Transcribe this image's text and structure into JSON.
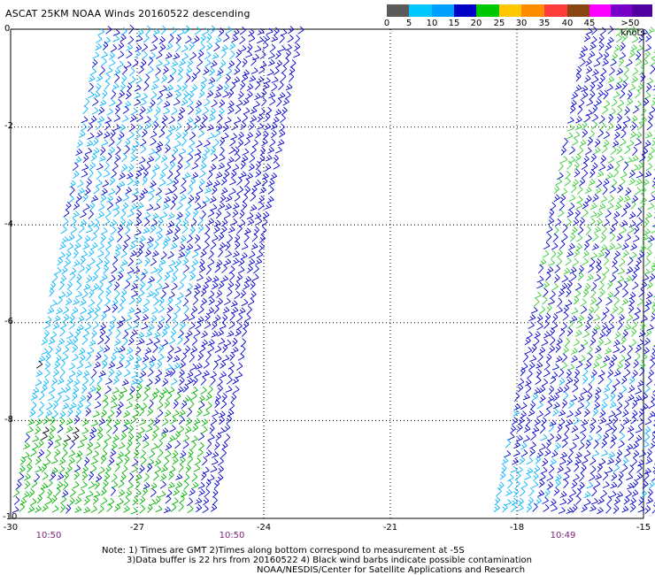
{
  "title": "ASCAT 25KM NOAA Winds 20160522 descending",
  "legend": {
    "labels": [
      "0",
      "5",
      "10",
      "15",
      "20",
      "25",
      "30",
      "35",
      "40",
      "45",
      ">50 knots"
    ],
    "colors": [
      "#5a5a5a",
      "#00c8ff",
      "#00a0ff",
      "#0000c8",
      "#00c800",
      "#ffc800",
      "#ff8c00",
      "#ff3c3c",
      "#8b4513",
      "#ff00ff",
      "#7800c8",
      "#5000a0"
    ]
  },
  "y_axis_labels": [
    "0",
    "-2",
    "-4",
    "-6",
    "-8",
    "-10"
  ],
  "x_axis_labels": [
    "-30",
    "-27",
    "-24",
    "-21",
    "-18",
    "-15"
  ],
  "pass_times": [
    "10:50",
    "10:50",
    "10:49"
  ],
  "notes": {
    "line1": "Note: 1) Times are GMT 2)Times along bottom correspond to measurement at -5S",
    "line2": "3)Data buffer is 22 hrs from 20160522 4) Black wind barbs indicate possible contamination",
    "line3": "NOAA/NESDIS/Center for Satellite Applications and Research"
  },
  "map": {
    "lon_range": [
      -30,
      -15
    ],
    "lat_range": [
      -10,
      0
    ],
    "grid": "dotted",
    "swath_colors": {
      "cyan": "#00b4ff",
      "blue": "#0000cc",
      "green": "#00b400",
      "lightgreen": "#33cc33",
      "black": "#000000"
    }
  }
}
